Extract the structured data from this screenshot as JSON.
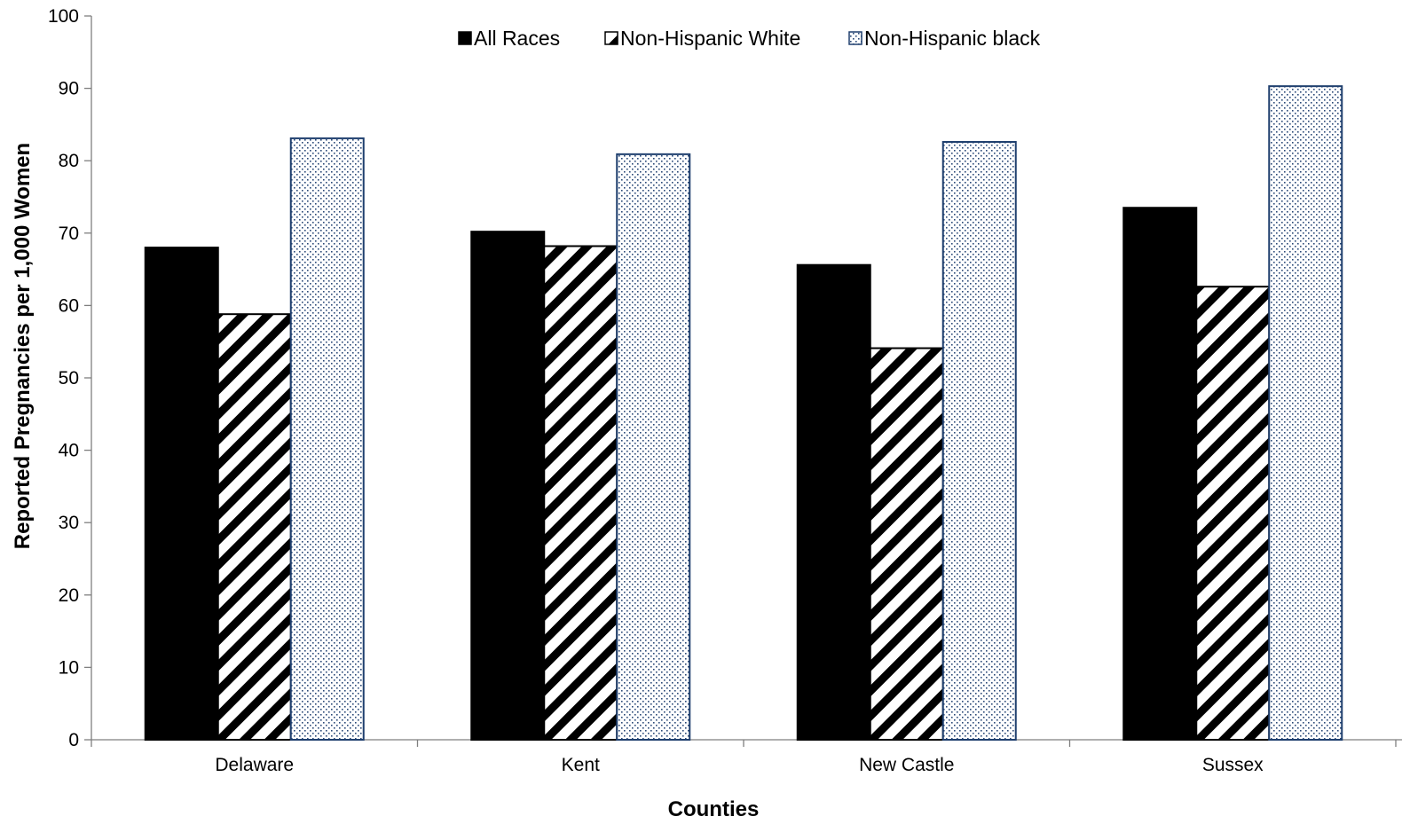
{
  "chart_data": {
    "type": "bar",
    "title": "",
    "xlabel": "Counties",
    "ylabel": "Reported Pregnancies per 1,000 Women",
    "ylim": [
      0,
      100
    ],
    "yticks": [
      0,
      10,
      20,
      30,
      40,
      50,
      60,
      70,
      80,
      90,
      100
    ],
    "categories": [
      "Delaware",
      "Kent",
      "New Castle",
      "Sussex"
    ],
    "series": [
      {
        "name": "All Races",
        "values": [
          68.0,
          70.2,
          65.6,
          73.5
        ],
        "fill": "solid",
        "color": "#000000"
      },
      {
        "name": "Non-Hispanic White",
        "values": [
          58.8,
          68.2,
          54.1,
          62.6
        ],
        "fill": "diagonal-stripes",
        "color": "#000000"
      },
      {
        "name": "Non-Hispanic black",
        "values": [
          83.1,
          80.9,
          82.6,
          90.3
        ],
        "fill": "dots",
        "color": "#1f3f6e"
      }
    ],
    "legend": "top-center",
    "grid": false
  }
}
